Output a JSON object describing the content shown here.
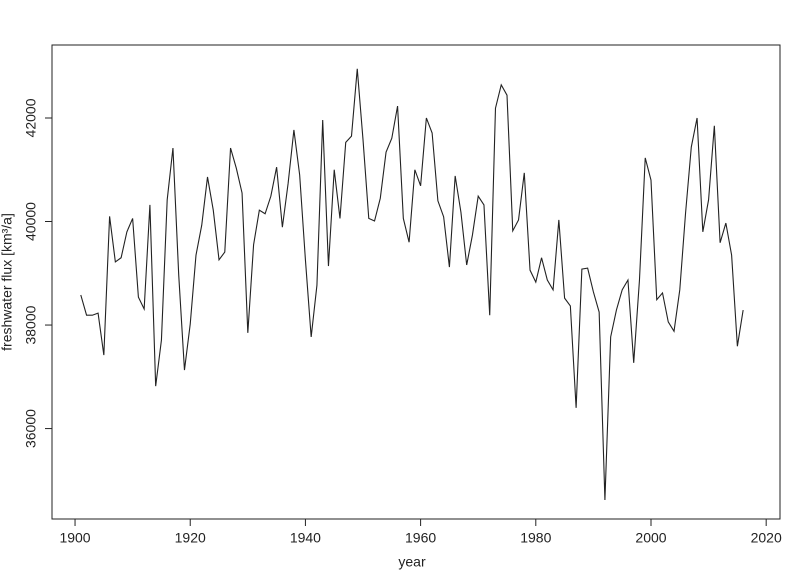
{
  "chart_data": {
    "type": "line",
    "x_label": "year",
    "y_label": "freshwater flux [km³/a]",
    "x": [
      1901,
      1902,
      1903,
      1904,
      1905,
      1906,
      1907,
      1908,
      1909,
      1910,
      1911,
      1912,
      1913,
      1914,
      1915,
      1916,
      1917,
      1918,
      1919,
      1920,
      1921,
      1922,
      1923,
      1924,
      1925,
      1926,
      1927,
      1928,
      1929,
      1930,
      1931,
      1932,
      1933,
      1934,
      1935,
      1936,
      1937,
      1938,
      1939,
      1940,
      1941,
      1942,
      1943,
      1944,
      1945,
      1946,
      1947,
      1948,
      1949,
      1950,
      1951,
      1952,
      1953,
      1954,
      1955,
      1956,
      1957,
      1958,
      1959,
      1960,
      1961,
      1962,
      1963,
      1964,
      1965,
      1966,
      1967,
      1968,
      1969,
      1970,
      1971,
      1972,
      1973,
      1974,
      1975,
      1976,
      1977,
      1978,
      1979,
      1980,
      1981,
      1982,
      1983,
      1984,
      1985,
      1986,
      1987,
      1988,
      1989,
      1990,
      1991,
      1992,
      1993,
      1994,
      1995,
      1996,
      1997,
      1998,
      1999,
      2000,
      2001,
      2002,
      2003,
      2004,
      2005,
      2006,
      2007,
      2008,
      2009,
      2010,
      2011,
      2012,
      2013,
      2014,
      2015,
      2016
    ],
    "series": [
      {
        "name": "freshwater flux",
        "color": "#222222",
        "values": [
          38580,
          38190,
          38190,
          38230,
          37420,
          40100,
          39220,
          39300,
          39800,
          40060,
          38540,
          38310,
          40320,
          36820,
          37710,
          40420,
          41420,
          38970,
          37130,
          38020,
          39350,
          39930,
          40860,
          40220,
          39260,
          39410,
          41420,
          41030,
          40550,
          37850,
          39550,
          40220,
          40150,
          40490,
          41050,
          39890,
          40740,
          41770,
          40900,
          39260,
          37770,
          38770,
          41960,
          39140,
          41000,
          40060,
          41530,
          41650,
          42950,
          41580,
          40060,
          40010,
          40450,
          41340,
          41610,
          42230,
          40060,
          39600,
          41000,
          40690,
          42000,
          41710,
          40400,
          40090,
          39120,
          40880,
          40180,
          39160,
          39740,
          40490,
          40320,
          38190,
          42190,
          42640,
          42440,
          39820,
          40030,
          40940,
          39060,
          38830,
          39300,
          38870,
          38680,
          40030,
          38520,
          38370,
          36400,
          39080,
          39100,
          38640,
          38250,
          34620,
          37770,
          38290,
          38680,
          38870,
          37270,
          38870,
          41230,
          40800,
          38490,
          38620,
          38060,
          37880,
          38680,
          40160,
          41440,
          42000,
          39800,
          40420,
          41850,
          39590,
          39970,
          39350,
          37590,
          38290
        ]
      }
    ],
    "xlim": [
      1896,
      2022.4
    ],
    "ylim": [
      34253,
      43410
    ],
    "xticks": [
      1900,
      1920,
      1940,
      1960,
      1980,
      2000,
      2020
    ],
    "yticks": [
      36000,
      38000,
      40000,
      42000
    ],
    "grid": false
  }
}
